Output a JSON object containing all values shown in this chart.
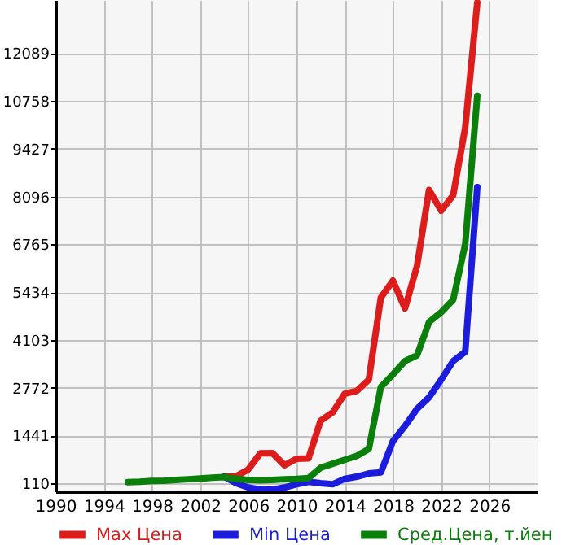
{
  "chart_data": {
    "type": "line",
    "xlim": [
      1990,
      2030
    ],
    "xticks": [
      1990,
      1994,
      1998,
      2002,
      2006,
      2010,
      2014,
      2018,
      2022,
      2026
    ],
    "ylim": [
      -117,
      13570
    ],
    "yticks": [
      110,
      1441,
      2772,
      4103,
      5434,
      6765,
      8096,
      9427,
      10758,
      12089
    ],
    "grid": true,
    "legend": "bottom",
    "marker": "none",
    "line_style": "solid",
    "series": [
      {
        "name": "Max Цена",
        "color": "#dd1c1c",
        "x": [
          2004,
          2005,
          2006,
          2007,
          2008,
          2009,
          2010,
          2011,
          2012,
          2013,
          2014,
          2015,
          2016,
          2017,
          2018,
          2019,
          2020,
          2021,
          2022,
          2023,
          2024,
          2025
        ],
        "values": [
          290,
          300,
          490,
          940,
          950,
          610,
          790,
          800,
          1850,
          2080,
          2600,
          2680,
          2990,
          5280,
          5750,
          4980,
          6160,
          8280,
          7700,
          8130,
          10020,
          13500
        ]
      },
      {
        "name": "Min Цена",
        "color": "#1c1cdd",
        "x": [
          2004,
          2005,
          2006,
          2007,
          2008,
          2009,
          2010,
          2011,
          2012,
          2013,
          2014,
          2015,
          2016,
          2017,
          2018,
          2019,
          2020,
          2021,
          2022,
          2023,
          2024,
          2025
        ],
        "values": [
          290,
          110,
          -10,
          -70,
          -70,
          -10,
          80,
          150,
          110,
          80,
          230,
          290,
          380,
          410,
          1280,
          1700,
          2180,
          2500,
          2990,
          3510,
          3770,
          8360
        ]
      },
      {
        "name": "Сред.Цена, т.йен",
        "color": "#0a800a",
        "x": [
          1996,
          1997,
          1998,
          1999,
          2000,
          2001,
          2002,
          2003,
          2004,
          2005,
          2006,
          2007,
          2008,
          2009,
          2010,
          2011,
          2012,
          2013,
          2014,
          2015,
          2016,
          2017,
          2018,
          2019,
          2020,
          2021,
          2022,
          2023,
          2024,
          2025
        ],
        "values": [
          140,
          150,
          170,
          180,
          200,
          220,
          240,
          260,
          280,
          230,
          200,
          190,
          200,
          220,
          230,
          250,
          540,
          650,
          760,
          870,
          1060,
          2790,
          3140,
          3510,
          3670,
          4600,
          4870,
          5220,
          6770,
          10900
        ]
      }
    ]
  }
}
